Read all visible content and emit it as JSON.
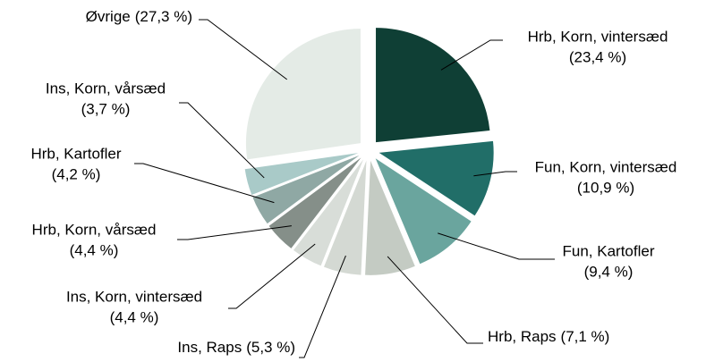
{
  "chart_data": {
    "type": "pie",
    "categories": [
      "Hrb, Korn, vintersæd",
      "Fun, Korn, vintersæd",
      "Fun, Kartofler",
      "Hrb, Raps",
      "Ins, Raps",
      "Ins, Korn, vintersæd",
      "Hrb, Korn, vårsæd",
      "Hrb, Kartofler",
      "Ins, Korn, vårsæd",
      "Øvrige"
    ],
    "values": [
      23.4,
      10.9,
      9.4,
      7.1,
      5.3,
      4.4,
      4.4,
      4.2,
      3.7,
      27.3
    ],
    "value_labels": [
      "(23,4 %)",
      "(10,9 %)",
      "(9,4 %)",
      "(7,1 %)",
      "(5,3 %)",
      "(4,4 %)",
      "(4,4 %)",
      "(4,2 %)",
      "(3,7 %)",
      "(27,3 %)"
    ],
    "colors": [
      "#0f3f35",
      "#216e68",
      "#6aa59e",
      "#c4cbc3",
      "#d4d9d3",
      "#d8ddd8",
      "#858f89",
      "#8fa8a4",
      "#a9cac8",
      "#e4ebe6"
    ]
  }
}
